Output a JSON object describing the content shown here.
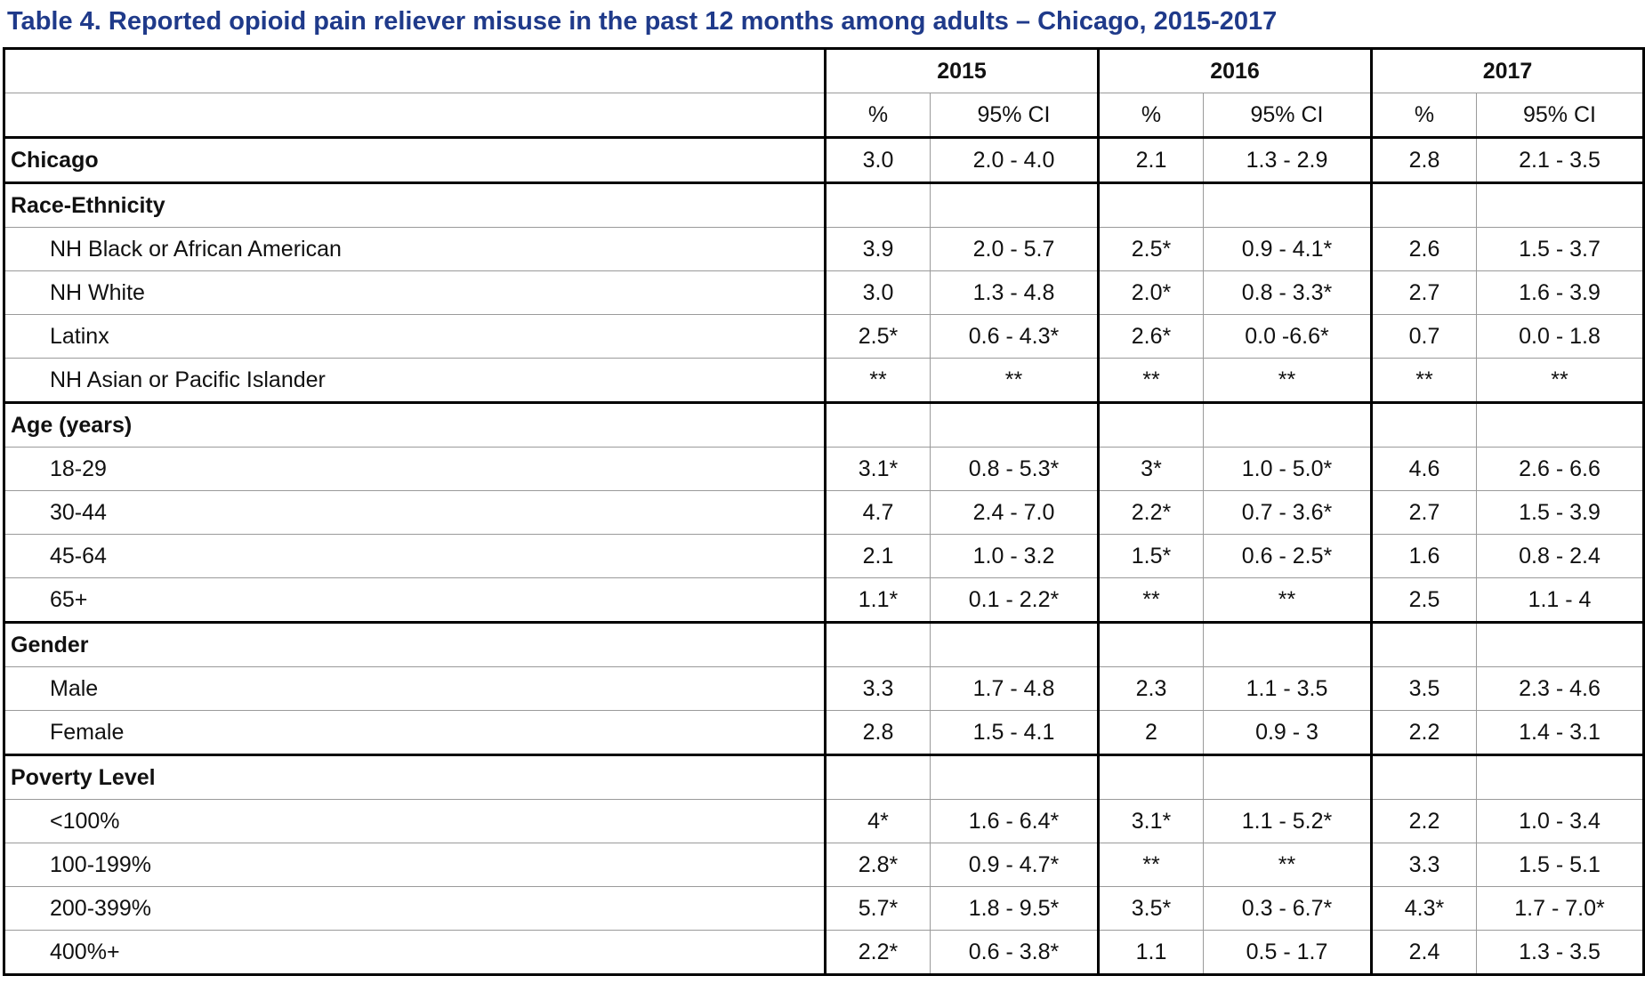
{
  "title": "Table 4. Reported opioid pain reliever misuse in the past 12 months among adults – Chicago, 2015-2017",
  "years": [
    "2015",
    "2016",
    "2017"
  ],
  "subheaders": {
    "pct": "%",
    "ci": "95% CI"
  },
  "rows": [
    {
      "type": "data",
      "bold": true,
      "label": "Chicago",
      "values": [
        "3.0",
        "2.0 - 4.0",
        "2.1",
        "1.3 - 2.9",
        "2.8",
        "2.1 - 3.5"
      ]
    },
    {
      "type": "section",
      "label": "Race-Ethnicity"
    },
    {
      "type": "data",
      "label": "NH Black or African American",
      "values": [
        "3.9",
        "2.0 - 5.7",
        "2.5*",
        "0.9 - 4.1*",
        "2.6",
        "1.5 - 3.7"
      ]
    },
    {
      "type": "data",
      "label": "NH White",
      "values": [
        "3.0",
        "1.3 - 4.8",
        "2.0*",
        "0.8 - 3.3*",
        "2.7",
        "1.6 - 3.9"
      ]
    },
    {
      "type": "data",
      "label": "Latinx",
      "values": [
        "2.5*",
        "0.6 - 4.3*",
        "2.6*",
        "0.0 -6.6*",
        "0.7",
        "0.0 - 1.8"
      ]
    },
    {
      "type": "data",
      "label": "NH Asian or Pacific Islander",
      "values": [
        "**",
        "**",
        "**",
        "**",
        "**",
        "**"
      ]
    },
    {
      "type": "section",
      "label": "Age (years)"
    },
    {
      "type": "data",
      "label": "18-29",
      "values": [
        "3.1*",
        "0.8 - 5.3*",
        "3*",
        "1.0 - 5.0*",
        "4.6",
        "2.6 - 6.6"
      ]
    },
    {
      "type": "data",
      "label": "30-44",
      "values": [
        "4.7",
        "2.4 - 7.0",
        "2.2*",
        "0.7 - 3.6*",
        "2.7",
        "1.5 - 3.9"
      ]
    },
    {
      "type": "data",
      "label": "45-64",
      "values": [
        "2.1",
        "1.0 - 3.2",
        "1.5*",
        "0.6 - 2.5*",
        "1.6",
        "0.8 - 2.4"
      ]
    },
    {
      "type": "data",
      "label": "65+",
      "values": [
        "1.1*",
        "0.1 - 2.2*",
        "**",
        "**",
        "2.5",
        "1.1 - 4"
      ]
    },
    {
      "type": "section",
      "label": "Gender"
    },
    {
      "type": "data",
      "label": "Male",
      "values": [
        "3.3",
        "1.7 - 4.8",
        "2.3",
        "1.1 - 3.5",
        "3.5",
        "2.3 - 4.6"
      ]
    },
    {
      "type": "data",
      "label": "Female",
      "values": [
        "2.8",
        "1.5 - 4.1",
        "2",
        "0.9 - 3",
        "2.2",
        "1.4 - 3.1"
      ]
    },
    {
      "type": "section",
      "label": "Poverty Level"
    },
    {
      "type": "data",
      "label": "<100%",
      "values": [
        "4*",
        "1.6 - 6.4*",
        "3.1*",
        "1.1 - 5.2*",
        "2.2",
        "1.0 - 3.4"
      ]
    },
    {
      "type": "data",
      "label": "100-199%",
      "values": [
        "2.8*",
        "0.9 - 4.7*",
        "**",
        "**",
        "3.3",
        "1.5 - 5.1"
      ]
    },
    {
      "type": "data",
      "label": "200-399%",
      "values": [
        "5.7*",
        "1.8 - 9.5*",
        "3.5*",
        "0.3 - 6.7*",
        "4.3*",
        "1.7 - 7.0*"
      ]
    },
    {
      "type": "data",
      "label": "400%+",
      "values": [
        "2.2*",
        "0.6 - 3.8*",
        "1.1",
        "0.5 - 1.7",
        "2.4",
        "1.3 - 3.5"
      ]
    }
  ]
}
